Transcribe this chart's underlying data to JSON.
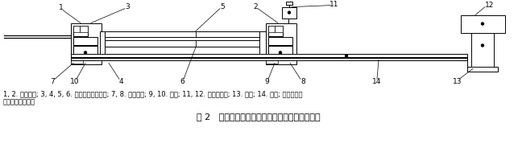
{
  "fig_width": 6.43,
  "fig_height": 1.84,
  "dpi": 100,
  "bg_color": "#ffffff",
  "caption_line1": "1, 2. 超声探头; 3, 4, 5, 6. 固定探头夹装机构; 7, 8. 固定机构; 9, 10. 滑块; 11, 12. 激光干涉仪; 13. 底座; 14. 导轨; 整套装置放",
  "caption_line2": "在密闭玻璃罩内。",
  "figure_label": "图 2   超声流量计时间测量准确度校准装置示意图",
  "label_fontsize": 6.5,
  "caption_fontsize": 6.0,
  "figure_label_fontsize": 8.0
}
